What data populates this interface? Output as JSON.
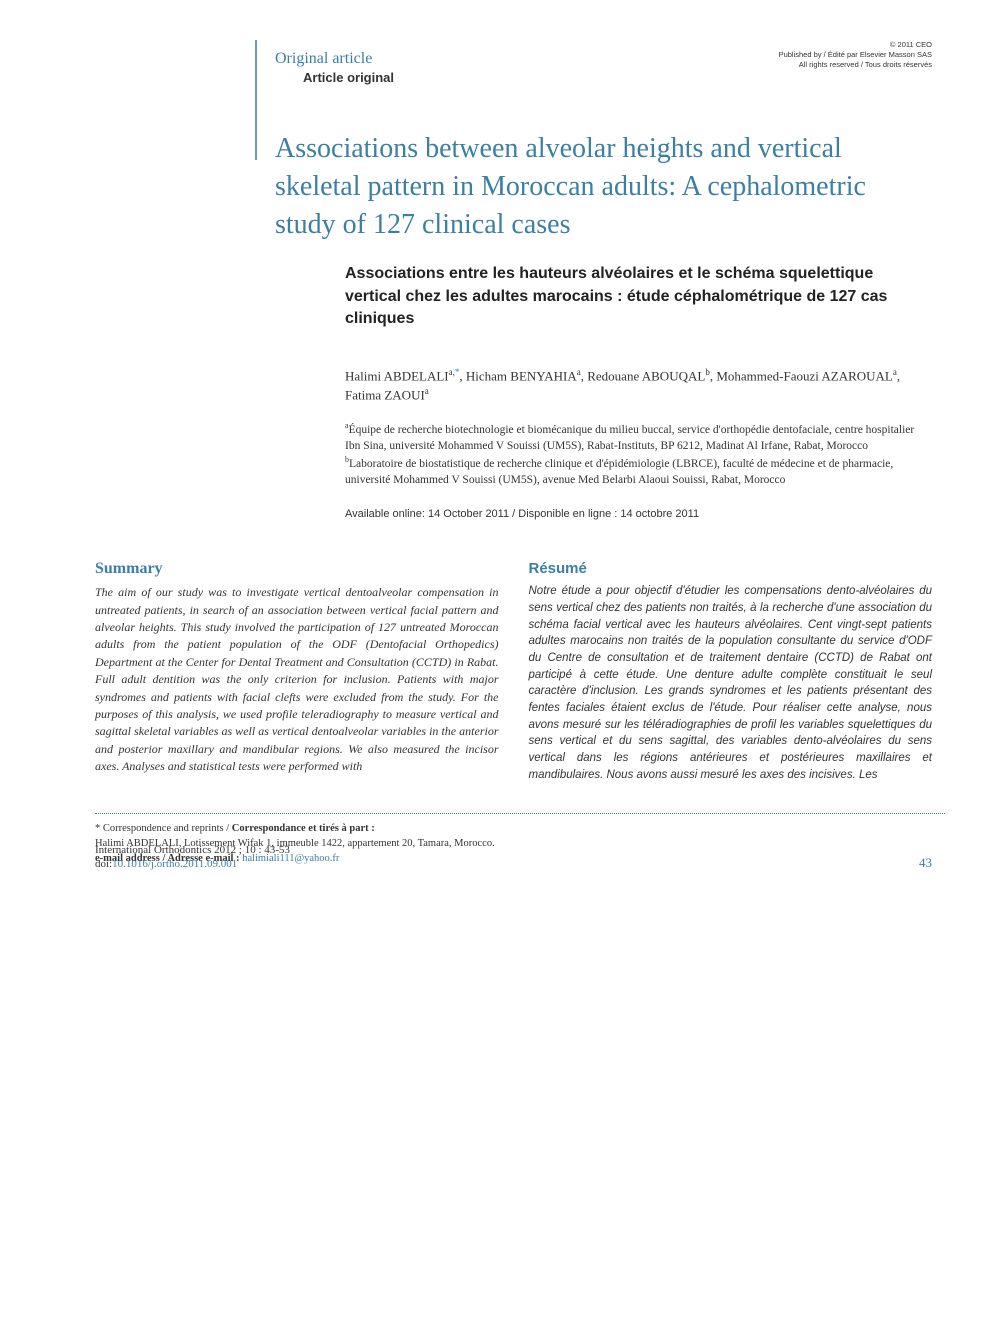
{
  "copyright": {
    "line1": "© 2011 CEO",
    "line2": "Published by / Édité par Elsevier Masson SAS",
    "line3": "All rights reserved / Tous droits réservés"
  },
  "article_type": {
    "en": "Original article",
    "fr": "Article original"
  },
  "title": {
    "en": "Associations between alveolar heights and vertical skeletal pattern in Moroccan adults: A cephalometric study of 127 clinical cases",
    "fr": "Associations entre les hauteurs alvéolaires et le schéma squelettique vertical chez les adultes marocains : étude céphalométrique de 127 cas cliniques"
  },
  "authors_html": "Halimi ABDELALI<sup>a,</sup><sup class=\"star\">*</sup>, Hicham BENYAHIA<sup>a</sup>, Redouane ABOUQAL<sup>b</sup>, Mohammed-Faouzi AZAROUAL<sup>a</sup>, Fatima ZAOUI<sup>a</sup>",
  "affiliations": {
    "a": "Équipe de recherche biotechnologie et biomécanique du milieu buccal, service d'orthopédie dentofaciale, centre hospitalier Ibn Sina, université Mohammed V Souissi (UM5S), Rabat-Instituts, BP 6212, Madinat Al Irfane, Rabat, Morocco",
    "b": "Laboratoire de biostatistique de recherche clinique et d'épidémiologie (LBRCE), faculté de médecine et de pharmacie, université Mohammed V Souissi (UM5S), avenue Med Belarbi Alaoui Souissi, Rabat, Morocco"
  },
  "availability": "Available online: 14 October 2011 / Disponible en ligne : 14 octobre 2011",
  "summary": {
    "heading": "Summary",
    "text": "The aim of our study was to investigate vertical dentoalveolar compensation in untreated patients, in search of an association between vertical facial pattern and alveolar heights. This study involved the participation of 127 untreated Moroccan adults from the patient population of the ODF (Dentofacial Orthopedics) Department at the Center for Dental Treatment and Consultation (CCTD) in Rabat. Full adult dentition was the only criterion for inclusion. Patients with major syndromes and patients with facial clefts were excluded from the study. For the purposes of this analysis, we used profile teleradiography to measure vertical and sagittal skeletal variables as well as vertical dentoalveolar variables in the anterior and posterior maxillary and mandibular regions. We also measured the incisor axes. Analyses and statistical tests were performed with"
  },
  "resume": {
    "heading": "Résumé",
    "text": "Notre étude a pour objectif d'étudier les compensations dento-alvéolaires du sens vertical chez des patients non traités, à la recherche d'une association du schéma facial vertical avec les hauteurs alvéolaires. Cent vingt-sept patients adultes marocains non traités de la population consultante du service d'ODF du Centre de consultation et de traitement dentaire (CCTD) de Rabat ont participé à cette étude. Une denture adulte complète constituait le seul caractère d'inclusion. Les grands syndromes et les patients présentant des fentes faciales étaient exclus de l'étude. Pour réaliser cette analyse, nous avons mesuré sur les téléradiographies de profil les variables squelettiques du sens vertical et du sens sagittal, des variables dento-alvéolaires du sens vertical dans les régions antérieures et postérieures maxillaires et mandibulaires. Nous avons aussi mesuré les axes des incisives. Les"
  },
  "correspondence": {
    "label_en": "* Correspondence and reprints / ",
    "label_fr": "Correspondance et tirés à part :",
    "address": "Halimi ABDELALI, Lotissement Wifak 1, immeuble 1422, appartement 20, Tamara, Morocco.",
    "email_label_en": "e-mail address / ",
    "email_label_fr": "Adresse e-mail : ",
    "email": "halimiali111@yahoo.fr"
  },
  "footer": {
    "journal": "International Orthodontics 2012 ; 10 : 43-53",
    "doi_prefix": "doi:",
    "doi": "10.1016/j.ortho.2011.09.001",
    "page": "43"
  },
  "colors": {
    "accent": "#3b7fa3",
    "text": "#333333",
    "background": "#ffffff"
  },
  "typography": {
    "title_fontsize": 28,
    "subtitle_fontsize": 16,
    "body_fontsize": 12,
    "small_fontsize": 11
  }
}
